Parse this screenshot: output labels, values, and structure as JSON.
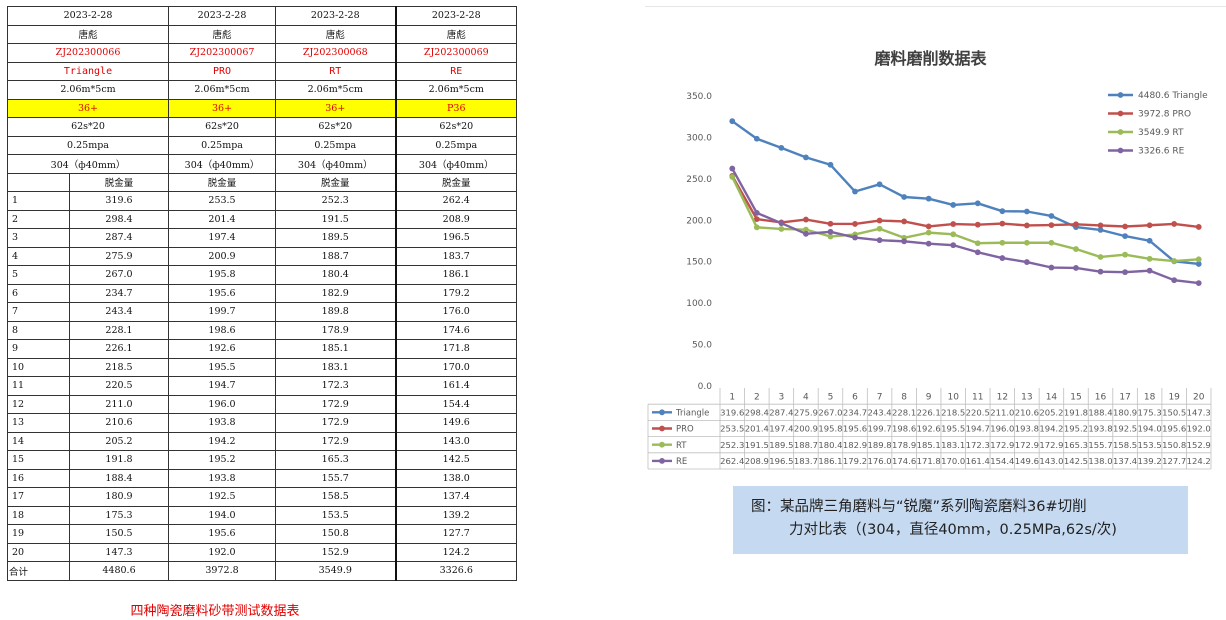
{
  "table": {
    "columns": [
      {
        "date": "2023-2-28",
        "person": "唐彪",
        "code": "ZJ202300066",
        "name": "Triangle",
        "size": "2.06m*5cm",
        "grit": "36+",
        "time": "62s*20",
        "pressure": "0.25mpa",
        "material": "304（ф40mm）",
        "header": "脱金量",
        "total": "4480.6"
      },
      {
        "date": "2023-2-28",
        "person": "唐彪",
        "code": "ZJ202300067",
        "name": "PRO",
        "size": "2.06m*5cm",
        "grit": "36+",
        "time": "62s*20",
        "pressure": "0.25mpa",
        "material": "304（ф40mm）",
        "header": "脱金量",
        "total": "3972.8"
      },
      {
        "date": "2023-2-28",
        "person": "唐彪",
        "code": "ZJ202300068",
        "name": "RT",
        "size": "2.06m*5cm",
        "grit": "36+",
        "time": "62s*20",
        "pressure": "0.25mpa",
        "material": "304（ф40mm）",
        "header": "脱金量",
        "total": "3549.9"
      },
      {
        "date": "2023-2-28",
        "person": "唐彪",
        "code": "ZJ202300069",
        "name": "RE",
        "size": "2.06m*5cm",
        "grit": "P36",
        "time": "62s*20",
        "pressure": "0.25mpa",
        "material": "304（ф40mm）",
        "header": "脱金量",
        "total": "3326.6"
      }
    ],
    "rows": [
      [
        "1",
        "319.6",
        "253.5",
        "252.3",
        "262.4"
      ],
      [
        "2",
        "298.4",
        "201.4",
        "191.5",
        "208.9"
      ],
      [
        "3",
        "287.4",
        "197.4",
        "189.5",
        "196.5"
      ],
      [
        "4",
        "275.9",
        "200.9",
        "188.7",
        "183.7"
      ],
      [
        "5",
        "267.0",
        "195.8",
        "180.4",
        "186.1"
      ],
      [
        "6",
        "234.7",
        "195.6",
        "182.9",
        "179.2"
      ],
      [
        "7",
        "243.4",
        "199.7",
        "189.8",
        "176.0"
      ],
      [
        "8",
        "228.1",
        "198.6",
        "178.9",
        "174.6"
      ],
      [
        "9",
        "226.1",
        "192.6",
        "185.1",
        "171.8"
      ],
      [
        "10",
        "218.5",
        "195.5",
        "183.1",
        "170.0"
      ],
      [
        "11",
        "220.5",
        "194.7",
        "172.3",
        "161.4"
      ],
      [
        "12",
        "211.0",
        "196.0",
        "172.9",
        "154.4"
      ],
      [
        "13",
        "210.6",
        "193.8",
        "172.9",
        "149.6"
      ],
      [
        "14",
        "205.2",
        "194.2",
        "172.9",
        "143.0"
      ],
      [
        "15",
        "191.8",
        "195.2",
        "165.3",
        "142.5"
      ],
      [
        "16",
        "188.4",
        "193.8",
        "155.7",
        "138.0"
      ],
      [
        "17",
        "180.9",
        "192.5",
        "158.5",
        "137.4"
      ],
      [
        "18",
        "175.3",
        "194.0",
        "153.5",
        "139.2"
      ],
      [
        "19",
        "150.5",
        "195.6",
        "150.8",
        "127.7"
      ],
      [
        "20",
        "147.3",
        "192.0",
        "152.9",
        "124.2"
      ]
    ],
    "total_label": "合计",
    "caption": "四种陶瓷磨料砂带测试数据表"
  },
  "chart_data": {
    "type": "line",
    "title": "磨料磨削数据表",
    "x": [
      "1",
      "2",
      "3",
      "4",
      "5",
      "6",
      "7",
      "8",
      "9",
      "10",
      "11",
      "12",
      "13",
      "14",
      "15",
      "16",
      "17",
      "18",
      "19",
      "20"
    ],
    "ylim": [
      0,
      350
    ],
    "yticks": [
      "0.0",
      "50.0",
      "100.0",
      "150.0",
      "200.0",
      "250.0",
      "300.0",
      "350.0"
    ],
    "legend_position": "top-right",
    "data_table": true,
    "series": [
      {
        "name": "Triangle",
        "legend": "4480.6 Triangle",
        "color": "#4f81bd",
        "values": [
          319.6,
          298.4,
          287.4,
          275.9,
          267.0,
          234.7,
          243.4,
          228.1,
          226.1,
          218.5,
          220.5,
          211.0,
          210.6,
          205.2,
          191.8,
          188.4,
          180.9,
          175.3,
          150.5,
          147.3
        ]
      },
      {
        "name": "PRO",
        "legend": "3972.8 PRO",
        "color": "#c0504d",
        "values": [
          253.5,
          201.4,
          197.4,
          200.9,
          195.8,
          195.6,
          199.7,
          198.6,
          192.6,
          195.5,
          194.7,
          196.0,
          193.8,
          194.2,
          195.2,
          193.8,
          192.5,
          194.0,
          195.6,
          192.0
        ]
      },
      {
        "name": "RT",
        "legend": "3549.9 RT",
        "color": "#9bbb59",
        "values": [
          252.3,
          191.5,
          189.5,
          188.7,
          180.4,
          182.9,
          189.8,
          178.9,
          185.1,
          183.1,
          172.3,
          172.9,
          172.9,
          172.9,
          165.3,
          155.7,
          158.5,
          153.5,
          150.8,
          152.9
        ]
      },
      {
        "name": "RE",
        "legend": "3326.6 RE",
        "color": "#8064a2",
        "values": [
          262.4,
          208.9,
          196.5,
          183.7,
          186.1,
          179.2,
          176.0,
          174.6,
          171.8,
          170.0,
          161.4,
          154.4,
          149.6,
          143.0,
          142.5,
          138.0,
          137.4,
          139.2,
          127.7,
          124.2
        ]
      }
    ]
  },
  "caption_box": {
    "line1": "图：某品牌三角磨料与“锐魔”系列陶瓷磨料36#切削",
    "line2": "力对比表（(304，直径40mm，0.25MPa,62s/次)"
  }
}
